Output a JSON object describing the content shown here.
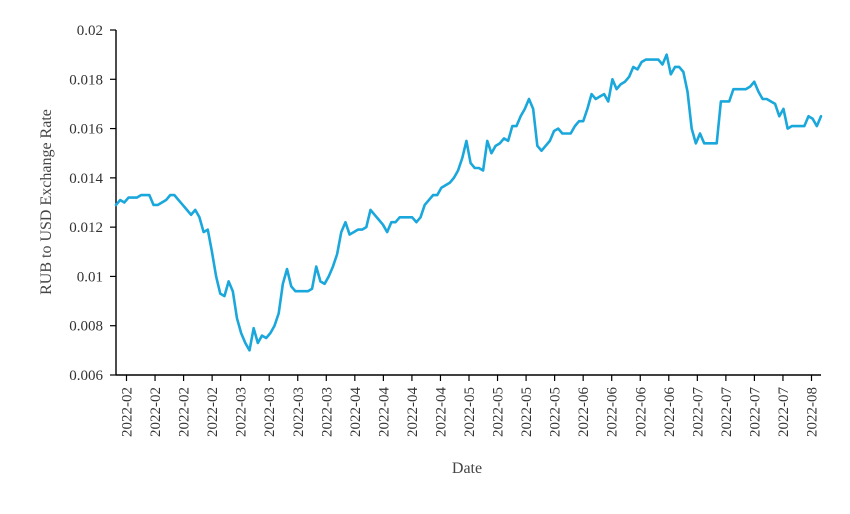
{
  "chart_data": {
    "type": "line",
    "title": "",
    "xlabel": "Date",
    "ylabel": "RUB to USD Exchange Rate",
    "ylim": [
      0.006,
      0.02
    ],
    "y_ticks": [
      0.006,
      0.008,
      0.01,
      0.012,
      0.014,
      0.016,
      0.018,
      0.02
    ],
    "y_tick_labels": [
      "0.006",
      "0.008",
      "0.01",
      "0.012",
      "0.014",
      "0.016",
      "0.018",
      "0.02"
    ],
    "x_tick_labels": [
      "2022-02",
      "2022-02",
      "2022-02",
      "2022-02",
      "2022-03",
      "2022-03",
      "2022-03",
      "2022-03",
      "2022-04",
      "2022-04",
      "2022-04",
      "2022-04",
      "2022-05",
      "2022-05",
      "2022-05",
      "2022-05",
      "2022-06",
      "2022-06",
      "2022-06",
      "2022-06",
      "2022-07",
      "2022-07",
      "2022-07",
      "2022-07",
      "2022-08"
    ],
    "grid": false,
    "legend": "none",
    "series_color": "#1AA7DC",
    "series": [
      {
        "values": [
          0.0129,
          0.0131,
          0.013,
          0.0132,
          0.0132,
          0.0132,
          0.0133,
          0.0133,
          0.0133,
          0.0129,
          0.0129,
          0.013,
          0.0131,
          0.0133,
          0.0133,
          0.0131,
          0.0129,
          0.0127,
          0.0125,
          0.0127,
          0.0124,
          0.0118,
          0.0119,
          0.011,
          0.01,
          0.0093,
          0.0092,
          0.0098,
          0.0094,
          0.0083,
          0.0077,
          0.0073,
          0.007,
          0.0079,
          0.0073,
          0.0076,
          0.0075,
          0.0077,
          0.008,
          0.0085,
          0.0097,
          0.0103,
          0.0096,
          0.0094,
          0.0094,
          0.0094,
          0.0094,
          0.0095,
          0.0104,
          0.0098,
          0.0097,
          0.01,
          0.0104,
          0.0109,
          0.0118,
          0.0122,
          0.0117,
          0.0118,
          0.0119,
          0.0119,
          0.012,
          0.0127,
          0.0125,
          0.0123,
          0.0121,
          0.0118,
          0.0122,
          0.0122,
          0.0124,
          0.0124,
          0.0124,
          0.0124,
          0.0122,
          0.0124,
          0.0129,
          0.0131,
          0.0133,
          0.0133,
          0.0136,
          0.0137,
          0.0138,
          0.014,
          0.0143,
          0.0148,
          0.0155,
          0.0146,
          0.0144,
          0.0144,
          0.0143,
          0.0155,
          0.015,
          0.0153,
          0.0154,
          0.0156,
          0.0155,
          0.0161,
          0.0161,
          0.0165,
          0.0168,
          0.0172,
          0.0168,
          0.0153,
          0.0151,
          0.0153,
          0.0155,
          0.0159,
          0.016,
          0.0158,
          0.0158,
          0.0158,
          0.0161,
          0.0163,
          0.0163,
          0.0168,
          0.0174,
          0.0172,
          0.0173,
          0.0174,
          0.0171,
          0.018,
          0.0176,
          0.0178,
          0.0179,
          0.0181,
          0.0185,
          0.0184,
          0.0187,
          0.0188,
          0.0188,
          0.0188,
          0.0188,
          0.0186,
          0.019,
          0.0182,
          0.0185,
          0.0185,
          0.0183,
          0.0175,
          0.016,
          0.0154,
          0.0158,
          0.0154,
          0.0154,
          0.0154,
          0.0154,
          0.0171,
          0.0171,
          0.0171,
          0.0176,
          0.0176,
          0.0176,
          0.0176,
          0.0177,
          0.0179,
          0.0175,
          0.0172,
          0.0172,
          0.0171,
          0.017,
          0.0165,
          0.0168,
          0.016,
          0.0161,
          0.0161,
          0.0161,
          0.0161,
          0.0165,
          0.0164,
          0.0161,
          0.0165
        ]
      }
    ]
  }
}
